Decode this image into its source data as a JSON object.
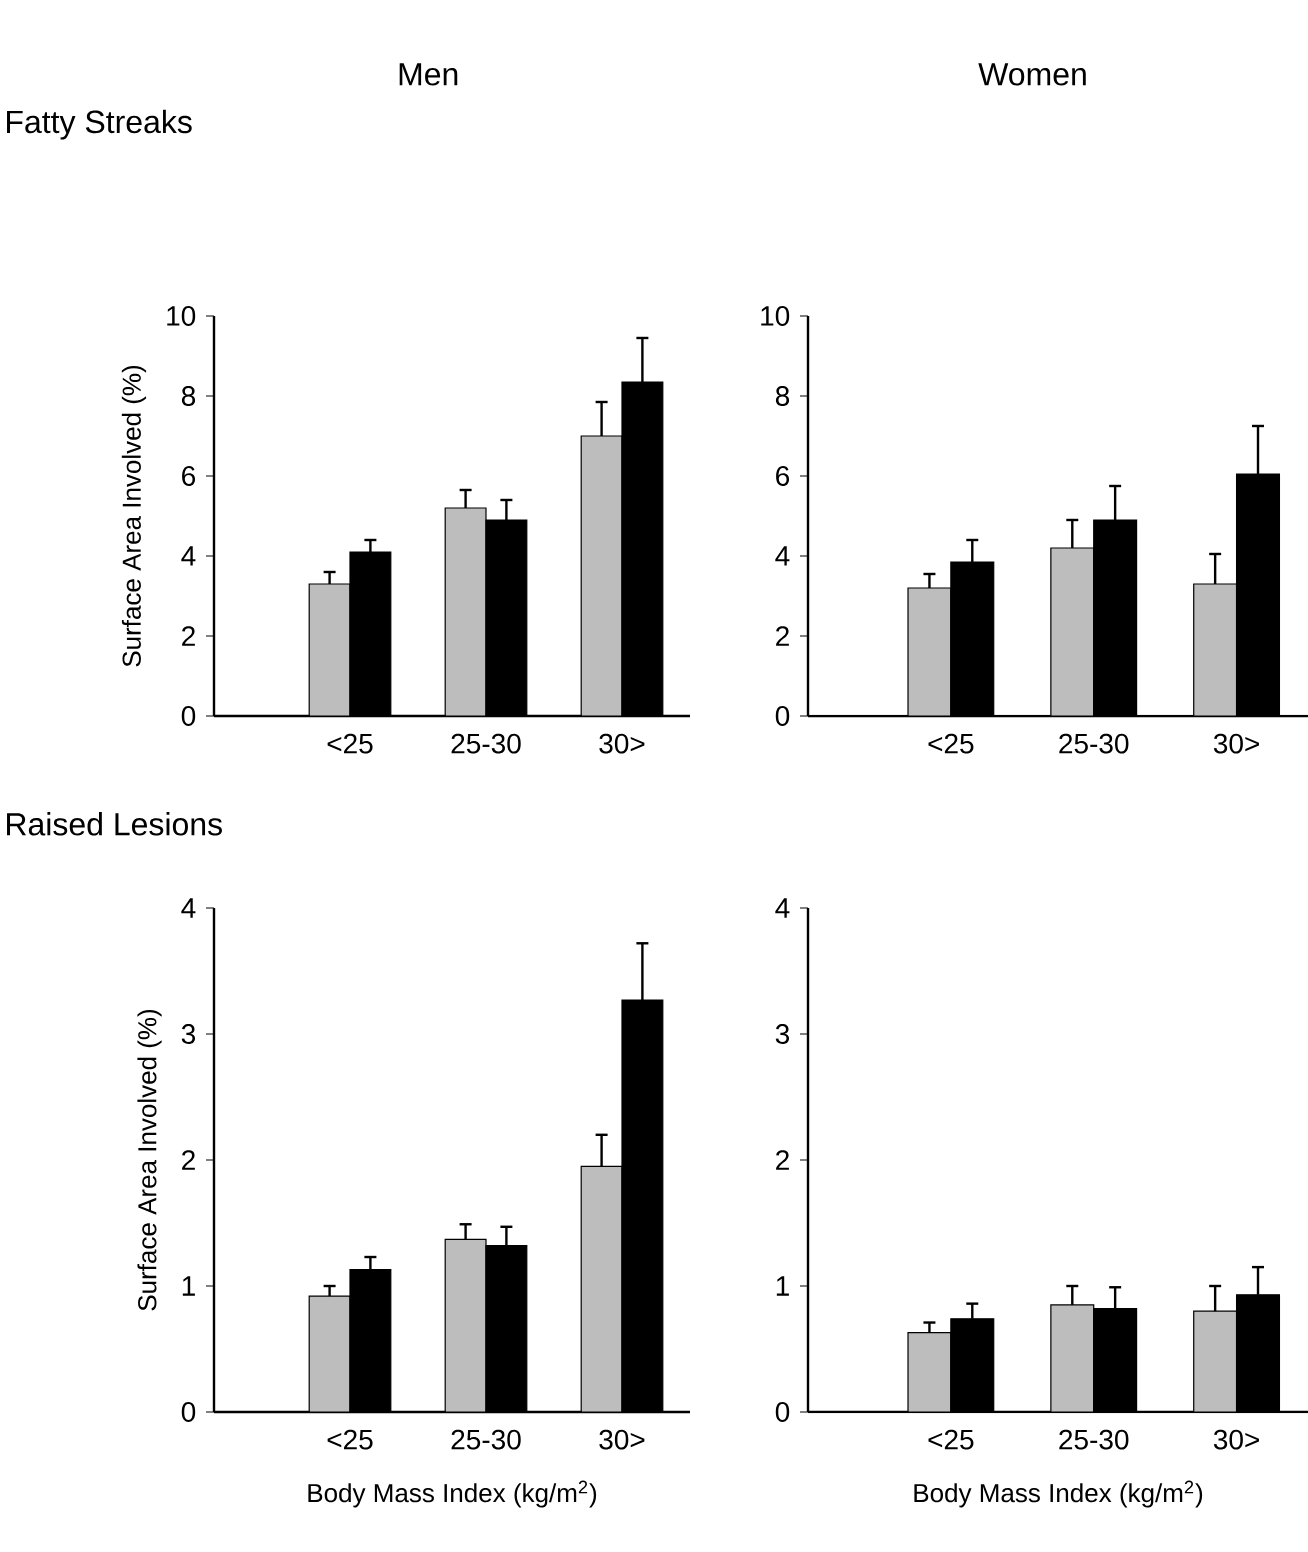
{
  "chart_data": [
    {
      "type": "bar",
      "title": "Fatty Streaks",
      "annotations": [
        "Men"
      ],
      "ylabel": "Surface Area Involved (%)",
      "categories": [
        "<25",
        "25-30",
        "30>"
      ],
      "ylim": [
        0,
        10
      ],
      "yticks": [
        0,
        2,
        4,
        6,
        8,
        10
      ],
      "series": [
        {
          "color": "#bdbdbd",
          "values": [
            3.3,
            5.2,
            7.0
          ],
          "errors": [
            0.3,
            0.45,
            0.85
          ]
        },
        {
          "color": "#000000",
          "values": [
            4.1,
            4.9,
            8.35
          ],
          "errors": [
            0.3,
            0.5,
            1.1
          ]
        }
      ]
    },
    {
      "type": "bar",
      "annotations": [
        "Women"
      ],
      "categories": [
        "<25",
        "25-30",
        "30>"
      ],
      "ylim": [
        0,
        10
      ],
      "yticks": [
        0,
        2,
        4,
        6,
        8,
        10
      ],
      "series": [
        {
          "color": "#bdbdbd",
          "values": [
            3.2,
            4.2,
            3.3
          ],
          "errors": [
            0.35,
            0.7,
            0.75
          ]
        },
        {
          "color": "#000000",
          "values": [
            3.85,
            4.9,
            6.05
          ],
          "errors": [
            0.55,
            0.85,
            1.2
          ]
        }
      ]
    },
    {
      "type": "bar",
      "title": "Raised Lesions",
      "ylabel": "Surface Area Involved (%)",
      "xlabel": "Body Mass Index (kg/m$^{2}$)",
      "categories": [
        "<25",
        "25-30",
        "30>"
      ],
      "ylim": [
        0,
        4
      ],
      "yticks": [
        0,
        1,
        2,
        3,
        4
      ],
      "series": [
        {
          "color": "#bdbdbd",
          "values": [
            0.92,
            1.37,
            1.95
          ],
          "errors": [
            0.08,
            0.12,
            0.25
          ]
        },
        {
          "color": "#000000",
          "values": [
            1.13,
            1.32,
            3.27
          ],
          "errors": [
            0.1,
            0.15,
            0.45
          ]
        }
      ]
    },
    {
      "type": "bar",
      "xlabel": "Body Mass Index (kg/m$^{2}$)",
      "categories": [
        "<25",
        "25-30",
        "30>"
      ],
      "ylim": [
        0,
        4
      ],
      "yticks": [
        0,
        1,
        2,
        3,
        4
      ],
      "series": [
        {
          "color": "#bdbdbd",
          "values": [
            0.63,
            0.85,
            0.8
          ],
          "errors": [
            0.08,
            0.15,
            0.2
          ]
        },
        {
          "color": "#000000",
          "values": [
            0.74,
            0.82,
            0.93
          ],
          "errors": [
            0.12,
            0.17,
            0.22
          ]
        }
      ]
    }
  ]
}
